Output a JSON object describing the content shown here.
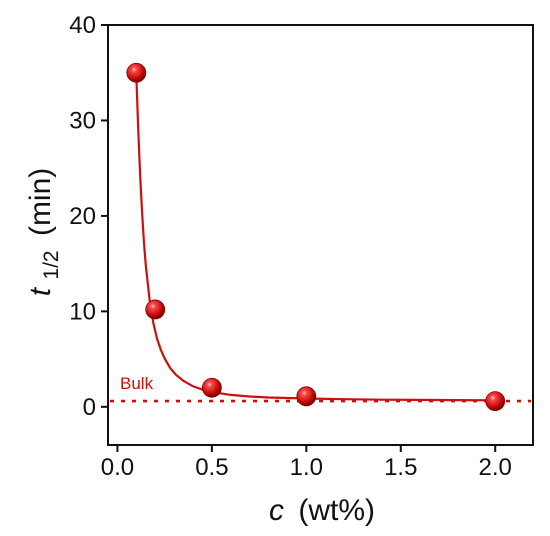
{
  "chart_data": {
    "type": "scatter",
    "xlabel": {
      "symbol": "c",
      "unit": "(wt%)"
    },
    "ylabel": {
      "symbol": "t",
      "subscript": "1/2",
      "unit": "(min)"
    },
    "xlim": [
      -0.05,
      2.2
    ],
    "ylim": [
      -4,
      40
    ],
    "x_ticks": [
      0.0,
      0.5,
      1.0,
      1.5,
      2.0
    ],
    "x_tick_labels": [
      "0.0",
      "0.5",
      "1.0",
      "1.5",
      "2.0"
    ],
    "y_ticks": [
      0,
      10,
      20,
      30,
      40
    ],
    "y_tick_labels": [
      "0",
      "10",
      "20",
      "30",
      "40"
    ],
    "series": [
      {
        "points": [
          {
            "x": 0.1,
            "y": 35.0
          },
          {
            "x": 0.2,
            "y": 10.2
          },
          {
            "x": 0.5,
            "y": 2.0
          },
          {
            "x": 1.0,
            "y": 1.1
          },
          {
            "x": 2.0,
            "y": 0.6
          }
        ],
        "fit_curve": {
          "x": [
            0.1,
            0.11,
            0.12,
            0.13,
            0.14,
            0.15,
            0.17,
            0.19,
            0.21,
            0.23,
            0.25,
            0.28,
            0.31,
            0.35,
            0.4,
            0.45,
            0.5,
            0.6,
            0.7,
            0.8,
            0.9,
            1.0,
            1.2,
            1.4,
            1.6,
            1.8,
            2.0
          ],
          "y": [
            34.8,
            29.1,
            24.4,
            20.5,
            17.3,
            14.8,
            11.2,
            8.8,
            7.1,
            5.95,
            5.05,
            4.05,
            3.35,
            2.7,
            2.15,
            1.8,
            1.55,
            1.25,
            1.08,
            0.98,
            0.92,
            0.87,
            0.8,
            0.75,
            0.72,
            0.7,
            0.68
          ]
        }
      }
    ],
    "reference_line": {
      "label": "Bulk",
      "y": 0.6,
      "style": "dotted"
    },
    "colors": {
      "series": "#cc1010",
      "reference": "#cc1010",
      "axis": "#111111"
    },
    "grid": false,
    "legend": "none"
  }
}
